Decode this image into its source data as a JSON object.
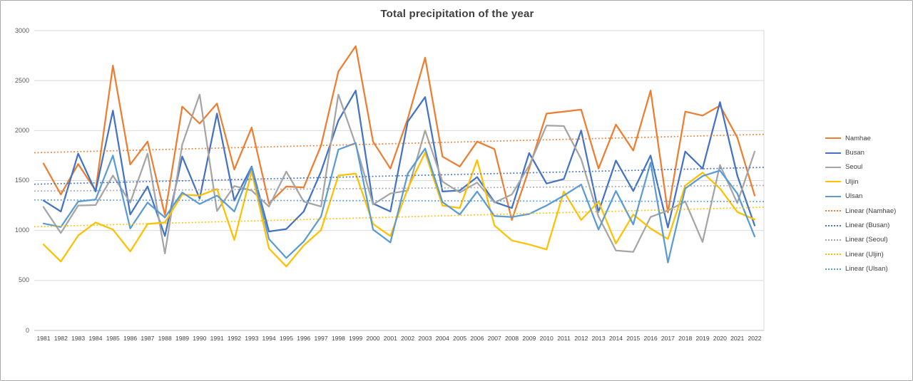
{
  "chart_data": {
    "type": "line",
    "title": "Total precipitation of the year",
    "x": [
      1981,
      1982,
      1983,
      1984,
      1985,
      1986,
      1987,
      1988,
      1989,
      1990,
      1991,
      1992,
      1993,
      1994,
      1995,
      1996,
      1997,
      1998,
      1999,
      2000,
      2001,
      2002,
      2003,
      2004,
      2005,
      2006,
      2007,
      2008,
      2009,
      2010,
      2011,
      2012,
      2013,
      2014,
      2015,
      2016,
      2017,
      2018,
      2019,
      2020,
      2021,
      2022
    ],
    "ylim": [
      0,
      3000
    ],
    "y_ticks": [
      0,
      500,
      1000,
      1500,
      2000,
      2500,
      3000
    ],
    "grid": "horizontal",
    "legend_position": "right",
    "series": [
      {
        "name": "Namhae",
        "color": "#ED7D31",
        "values": [
          1670,
          1360,
          1665,
          1400,
          2650,
          1660,
          1890,
          1155,
          2240,
          2070,
          2270,
          1610,
          2030,
          1270,
          1440,
          1430,
          1850,
          2590,
          2845,
          1890,
          1620,
          2120,
          2730,
          1740,
          1640,
          1890,
          1815,
          1105,
          1620,
          2170,
          2190,
          2210,
          1620,
          2060,
          1800,
          2400,
          1180,
          2190,
          2150,
          2250,
          1930,
          1350
        ]
      },
      {
        "name": "Busan",
        "color": "#4472C4",
        "values": [
          1300,
          1190,
          1770,
          1390,
          2200,
          1160,
          1440,
          945,
          1740,
          1320,
          2170,
          1300,
          1640,
          990,
          1015,
          1190,
          1590,
          2100,
          2400,
          1270,
          1190,
          2090,
          2335,
          1390,
          1400,
          1535,
          1285,
          1225,
          1775,
          1470,
          1515,
          2000,
          1185,
          1700,
          1395,
          1750,
          1030,
          1790,
          1620,
          2285,
          1550,
          1050
        ]
      },
      {
        "name": "Seoul",
        "color": "#A5A5A5",
        "values": [
          1235,
          975,
          1250,
          1255,
          1550,
          1280,
          1770,
          770,
          1860,
          2360,
          1195,
          1445,
          1400,
          1240,
          1590,
          1290,
          1240,
          2360,
          1860,
          1260,
          1370,
          1400,
          2000,
          1490,
          1380,
          1480,
          1280,
          1360,
          1650,
          2050,
          2045,
          1715,
          1140,
          800,
          785,
          1135,
          1200,
          1290,
          885,
          1655,
          1275,
          1790
        ]
      },
      {
        "name": "Uljin",
        "color": "#FFC000",
        "values": [
          860,
          690,
          950,
          1080,
          1010,
          790,
          1065,
          1080,
          1360,
          1350,
          1415,
          905,
          1590,
          820,
          640,
          850,
          1005,
          1550,
          1570,
          1065,
          945,
          1420,
          1780,
          1250,
          1225,
          1705,
          1050,
          900,
          860,
          810,
          1390,
          1105,
          1290,
          870,
          1160,
          1020,
          915,
          1450,
          1580,
          1420,
          1185,
          1110
        ]
      },
      {
        "name": "Ulsan",
        "color": "#5B9BD5",
        "values": [
          1070,
          1035,
          1290,
          1310,
          1750,
          1020,
          1280,
          1130,
          1380,
          1265,
          1350,
          1190,
          1630,
          915,
          725,
          890,
          1140,
          1810,
          1875,
          1010,
          880,
          1570,
          1820,
          1285,
          1160,
          1390,
          1145,
          1135,
          1165,
          1250,
          1350,
          1460,
          1010,
          1395,
          1060,
          1680,
          680,
          1420,
          1545,
          1600,
          1370,
          940
        ]
      }
    ],
    "trend_lines": [
      {
        "name": "Linear (Namhae)",
        "color": "#ED7D31",
        "start": 1780,
        "end": 1960
      },
      {
        "name": "Linear (Busan)",
        "color": "#4472C4",
        "start": 1465,
        "end": 1630
      },
      {
        "name": "Linear (Seoul)",
        "color": "#A5A5A5",
        "start": 1395,
        "end": 1450
      },
      {
        "name": "Linear (Uljin)",
        "color": "#FFC000",
        "start": 1040,
        "end": 1230
      },
      {
        "name": "Linear (Ulsan)",
        "color": "#5B9BD5",
        "start": 1305,
        "end": 1290
      }
    ],
    "gridline_color": "#d9d9d9",
    "axis_line_color": "#bfbfbf"
  }
}
